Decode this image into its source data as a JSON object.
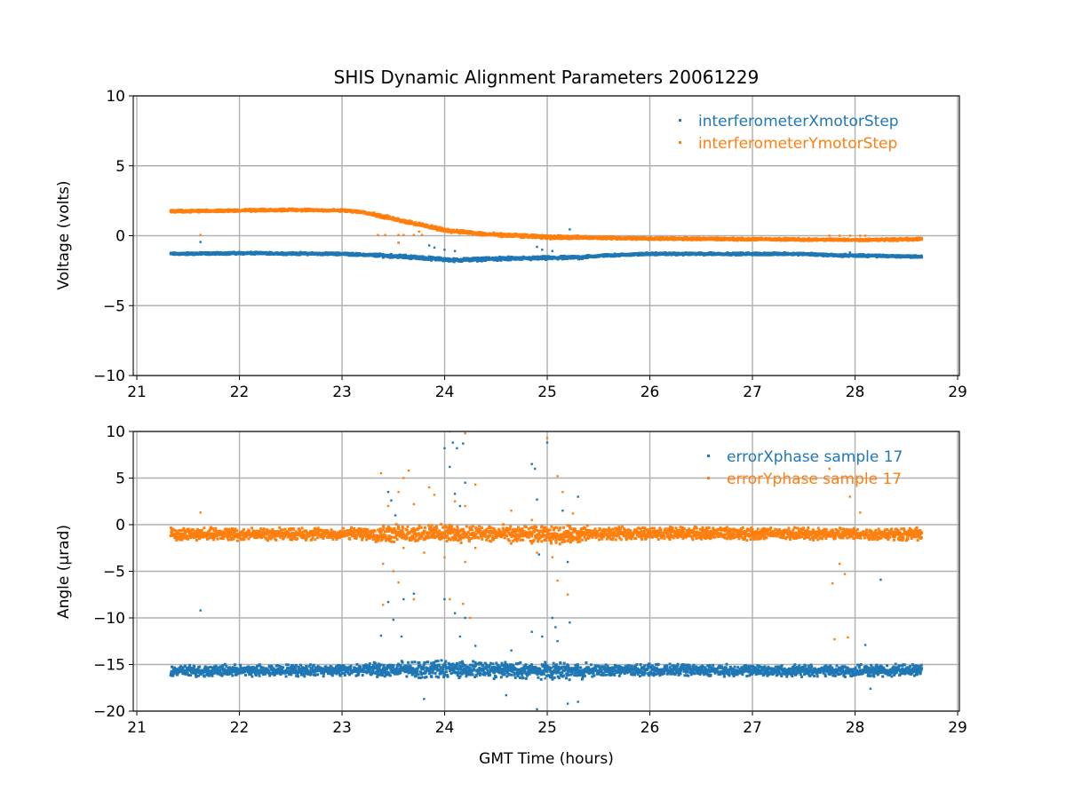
{
  "chart_data": [
    {
      "type": "scatter",
      "title": "SHIS Dynamic Alignment Parameters 20061229",
      "xlabel": "",
      "ylabel": "Voltage (volts)",
      "xlim": [
        20.965,
        29.017
      ],
      "ylim": [
        -10,
        10
      ],
      "xticks": [
        21,
        22,
        23,
        24,
        25,
        26,
        27,
        28,
        29
      ],
      "yticks": [
        -10,
        -5,
        0,
        5,
        10
      ],
      "ytick_labels": [
        "−10",
        "−5",
        "0",
        "5",
        "10"
      ],
      "grid": true,
      "legend": "top-right",
      "series": [
        {
          "name": "interferometerXmotorStep",
          "color": "#1f77b4",
          "x": [
            21.33,
            22.0,
            23.0,
            23.5,
            24.1,
            24.5,
            25.0,
            25.3,
            25.6,
            26.0,
            27.5,
            27.8,
            28.3,
            28.65
          ],
          "y": [
            -1.3,
            -1.25,
            -1.3,
            -1.45,
            -1.75,
            -1.65,
            -1.6,
            -1.55,
            -1.4,
            -1.3,
            -1.3,
            -1.4,
            -1.45,
            -1.5
          ],
          "spread": 0.1,
          "outliers": [
            [
              21.62,
              -0.45
            ],
            [
              23.85,
              -0.7
            ],
            [
              23.9,
              -0.85
            ],
            [
              24.0,
              -1.0
            ],
            [
              24.1,
              -1.1
            ],
            [
              24.9,
              -0.8
            ],
            [
              24.95,
              -1.0
            ],
            [
              25.22,
              0.45
            ],
            [
              25.05,
              -1.1
            ],
            [
              27.95,
              -1.2
            ],
            [
              23.55,
              -0.5
            ]
          ]
        },
        {
          "name": "interferometerYmotorStep",
          "color": "#ff7f0e",
          "x": [
            21.33,
            22.0,
            22.5,
            23.0,
            23.2,
            23.6,
            24.0,
            24.4,
            25.0,
            26.0,
            27.0,
            28.0,
            28.65
          ],
          "y": [
            1.75,
            1.8,
            1.85,
            1.8,
            1.7,
            1.05,
            0.4,
            0.1,
            -0.1,
            -0.2,
            -0.25,
            -0.3,
            -0.25
          ],
          "spread": 0.1,
          "outliers": [
            [
              21.62,
              0.05
            ],
            [
              23.35,
              0.05
            ],
            [
              23.42,
              0.05
            ],
            [
              23.55,
              0.05
            ],
            [
              23.6,
              0.05
            ],
            [
              23.7,
              0.05
            ],
            [
              23.78,
              0.05
            ],
            [
              23.55,
              -0.5
            ],
            [
              23.75,
              0.3
            ],
            [
              24.9,
              0.0
            ],
            [
              25.0,
              0.0
            ],
            [
              25.1,
              0.0
            ],
            [
              25.2,
              0.0
            ],
            [
              25.28,
              0.0
            ],
            [
              27.75,
              0.0
            ],
            [
              27.85,
              0.0
            ],
            [
              27.95,
              0.0
            ],
            [
              28.05,
              0.0
            ],
            [
              28.1,
              0.0
            ]
          ]
        }
      ]
    },
    {
      "type": "scatter",
      "title": "",
      "xlabel": "GMT Time (hours)",
      "ylabel": "Angle (μrad)",
      "xlim": [
        20.965,
        29.017
      ],
      "ylim": [
        -20,
        10
      ],
      "xticks": [
        21,
        22,
        23,
        24,
        25,
        26,
        27,
        28,
        29
      ],
      "yticks": [
        -20,
        -15,
        -10,
        -5,
        0,
        5,
        10
      ],
      "ytick_labels": [
        "−20",
        "−15",
        "−10",
        "−5",
        "0",
        "5",
        "10"
      ],
      "grid": true,
      "legend": "top-right",
      "series": [
        {
          "name": "errorXphase sample 17",
          "color": "#1f77b4",
          "x": [
            21.33,
            23.0,
            24.0,
            25.0,
            26.0,
            28.0,
            28.65
          ],
          "y": [
            -15.7,
            -15.6,
            -15.5,
            -15.7,
            -15.6,
            -15.7,
            -15.6
          ],
          "spread": 0.7,
          "outliers": [
            [
              21.62,
              -9.2
            ],
            [
              23.45,
              3.5
            ],
            [
              23.48,
              2.6
            ],
            [
              23.52,
              1.0
            ],
            [
              23.45,
              -8.3
            ],
            [
              23.5,
              -10.2
            ],
            [
              23.6,
              -8.0
            ],
            [
              23.58,
              -12.0
            ],
            [
              23.7,
              -7.4
            ],
            [
              23.38,
              -11.9
            ],
            [
              24.0,
              8.2
            ],
            [
              24.05,
              6.2
            ],
            [
              24.08,
              8.8
            ],
            [
              24.12,
              8.2
            ],
            [
              24.18,
              8.7
            ],
            [
              24.1,
              3.3
            ],
            [
              24.15,
              2.0
            ],
            [
              24.2,
              4.5
            ],
            [
              24.0,
              -8.0
            ],
            [
              24.1,
              -9.5
            ],
            [
              24.15,
              -12.0
            ],
            [
              24.2,
              -10.0
            ],
            [
              24.3,
              -13.0
            ],
            [
              24.65,
              -13.5
            ],
            [
              24.85,
              6.5
            ],
            [
              24.88,
              6.0
            ],
            [
              24.9,
              2.7
            ],
            [
              24.92,
              -3.2
            ],
            [
              24.85,
              -11.5
            ],
            [
              24.95,
              -12.0
            ],
            [
              24.98,
              -16.5
            ],
            [
              25.0,
              8.8
            ],
            [
              25.05,
              -10.0
            ],
            [
              25.08,
              -11.0
            ],
            [
              25.1,
              -12.5
            ],
            [
              25.15,
              1.5
            ],
            [
              25.2,
              -4.0
            ],
            [
              25.22,
              -10.5
            ],
            [
              25.3,
              3.0
            ],
            [
              23.8,
              -18.7
            ],
            [
              24.6,
              -18.3
            ],
            [
              25.2,
              -19.2
            ],
            [
              25.3,
              -19.0
            ],
            [
              28.25,
              -5.9
            ],
            [
              28.1,
              -12.9
            ],
            [
              28.15,
              -17.6
            ],
            [
              27.95,
              -0.8
            ],
            [
              24.9,
              -19.8
            ]
          ]
        },
        {
          "name": "errorYphase sample 17",
          "color": "#ff7f0e",
          "x": [
            21.33,
            23.0,
            24.0,
            25.0,
            26.0,
            28.0,
            28.65
          ],
          "y": [
            -1.0,
            -1.0,
            -0.9,
            -1.1,
            -0.9,
            -1.0,
            -1.0
          ],
          "spread": 0.75,
          "outliers": [
            [
              21.62,
              1.3
            ],
            [
              23.38,
              5.5
            ],
            [
              23.6,
              5.0
            ],
            [
              23.65,
              5.8
            ],
            [
              23.45,
              2.0
            ],
            [
              23.55,
              3.5
            ],
            [
              23.7,
              2.2
            ],
            [
              23.85,
              4.0
            ],
            [
              23.9,
              3.2
            ],
            [
              24.05,
              10.0
            ],
            [
              24.2,
              9.8
            ],
            [
              24.3,
              4.3
            ],
            [
              24.1,
              2.5
            ],
            [
              24.2,
              2.0
            ],
            [
              23.4,
              -4.2
            ],
            [
              23.5,
              -5.0
            ],
            [
              23.6,
              -2.5
            ],
            [
              23.8,
              -3.0
            ],
            [
              24.0,
              -3.5
            ],
            [
              24.2,
              -4.0
            ],
            [
              24.3,
              -2.5
            ],
            [
              23.4,
              -8.6
            ],
            [
              23.7,
              -8.0
            ],
            [
              24.05,
              -8.0
            ],
            [
              24.18,
              -8.5
            ],
            [
              23.55,
              -6.2
            ],
            [
              24.25,
              -10.0
            ],
            [
              24.65,
              1.5
            ],
            [
              24.85,
              0.5
            ],
            [
              24.9,
              -3.0
            ],
            [
              25.0,
              9.3
            ],
            [
              25.1,
              5.2
            ],
            [
              25.15,
              3.5
            ],
            [
              25.25,
              1.2
            ],
            [
              25.05,
              -3.5
            ],
            [
              25.1,
              -6.0
            ],
            [
              25.2,
              -7.5
            ],
            [
              27.75,
              6.0
            ],
            [
              27.85,
              -4.2
            ],
            [
              27.9,
              -5.3
            ],
            [
              27.95,
              3.0
            ],
            [
              28.05,
              1.3
            ],
            [
              27.78,
              -6.3
            ],
            [
              27.8,
              -12.3
            ],
            [
              27.93,
              -12.1
            ]
          ]
        }
      ]
    }
  ]
}
